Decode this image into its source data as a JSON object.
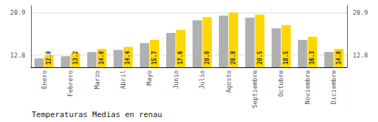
{
  "chart_data": {
    "type": "bar",
    "title": "Temperaturas Medias en renau",
    "categories": [
      "Enero",
      "Febrero",
      "Marzo",
      "Abril",
      "Mayo",
      "Junio",
      "Julio",
      "Agosto",
      "Septiembre",
      "Octubre",
      "Noviembre",
      "Diciembre"
    ],
    "series": [
      {
        "color": "#B0B0B0",
        "values": [
          12.2,
          12.6,
          13.4,
          13.8,
          15.1,
          17.0,
          19.4,
          20.3,
          19.9,
          17.9,
          15.7,
          13.4
        ]
      },
      {
        "color": "#FFD700",
        "values": [
          12.8,
          13.2,
          14.0,
          14.4,
          15.7,
          17.6,
          20.0,
          20.9,
          20.5,
          18.5,
          16.3,
          14.0
        ],
        "data_labels": true,
        "value_labels": [
          "12.8",
          "13.2",
          "14.0",
          "14.4",
          "15.7",
          "17.6",
          "20.0",
          "20.9",
          "20.5",
          "18.5",
          "16.3",
          "14.0"
        ]
      }
    ],
    "ylim": [
      10.5,
      22.2
    ],
    "yticks": [
      12.8,
      20.9
    ],
    "grid": true
  }
}
